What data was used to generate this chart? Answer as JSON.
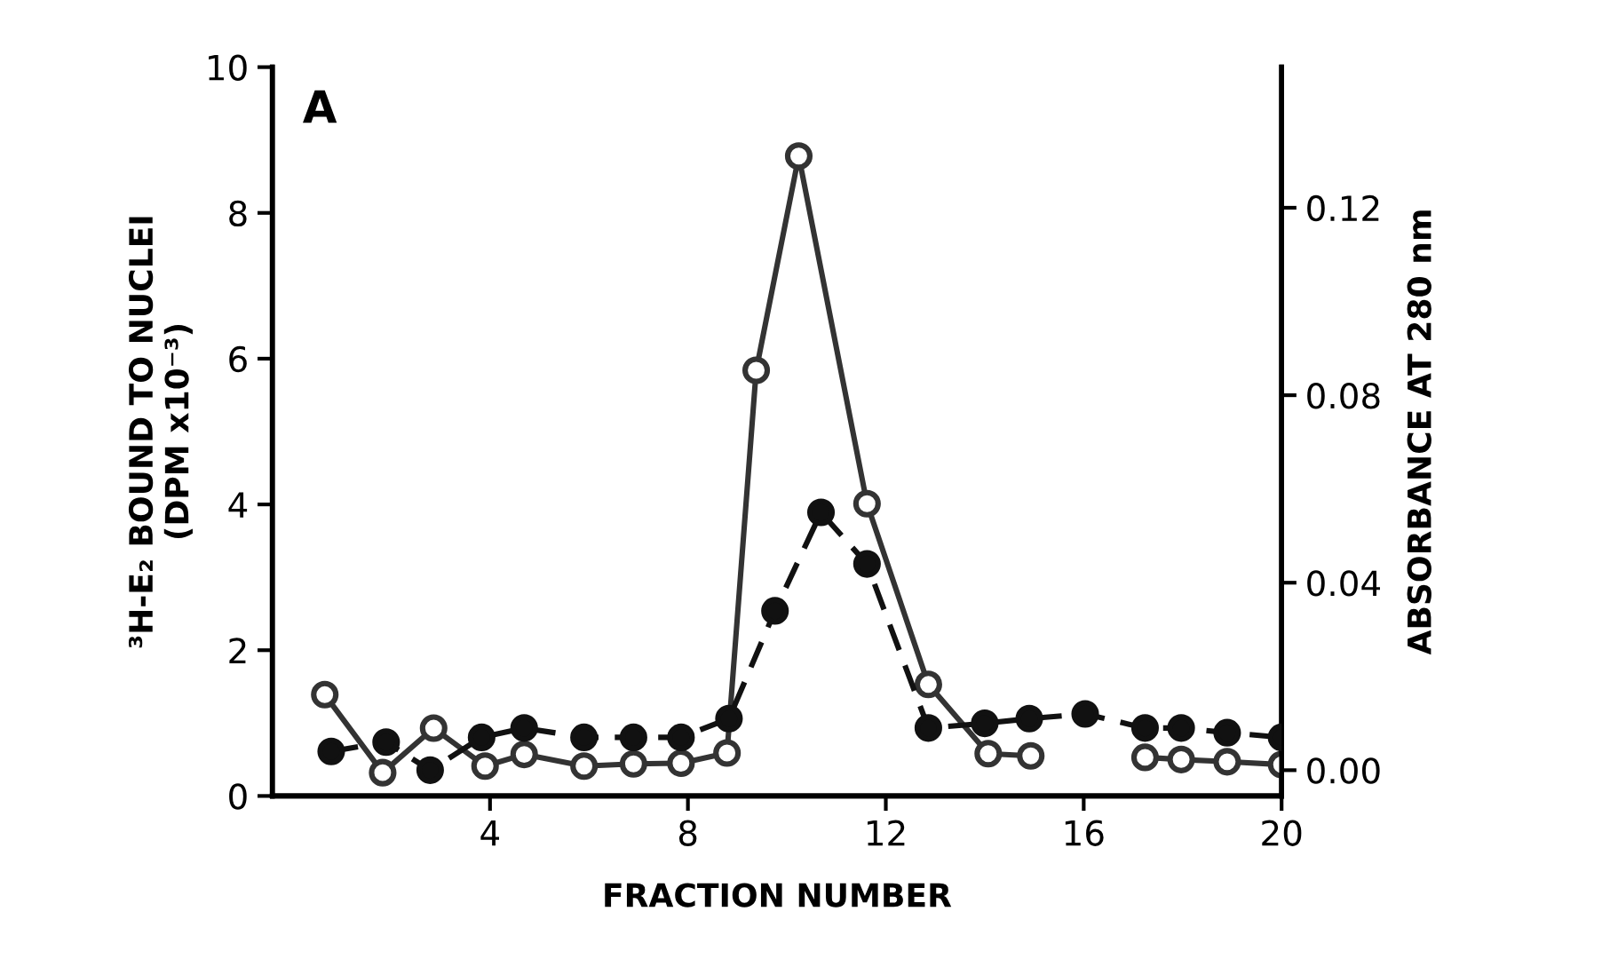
{
  "chart_data": {
    "type": "line",
    "xlabel": "FRACTION NUMBER",
    "ylabel": "³H-E₂ BOUND TO NUCLEI\n(DPM x10⁻³)",
    "y2label": "ABSORBANCE AT 280 nm",
    "annotations": [
      "A"
    ],
    "xlim": [
      -0.4,
      20
    ],
    "xticks": [
      4,
      8,
      12,
      16,
      20
    ],
    "ylim": [
      0,
      10
    ],
    "yticks": [
      0,
      2,
      4,
      6,
      8,
      10
    ],
    "y2lim": [
      -0.0055,
      0.15
    ],
    "y2ticks": [
      {
        "value": 0,
        "label": "0.00"
      },
      {
        "value": 0.04,
        "label": "0.04"
      },
      {
        "value": 0.08,
        "label": "0.08"
      },
      {
        "value": 0.12,
        "label": "0.12"
      }
    ],
    "grid": false,
    "marker": "circle",
    "series": [
      {
        "color": "#333333",
        "line_style": "solid",
        "axis": "y",
        "x": [
          0.66,
          1.83,
          2.86,
          3.9,
          4.69,
          5.9,
          6.9,
          7.86,
          8.79,
          9.38,
          10.24,
          11.62,
          12.86,
          14.07,
          14.93,
          16.03,
          17.24,
          17.97,
          18.9,
          20.0
        ],
        "values": [
          1.39,
          0.32,
          0.93,
          0.41,
          0.57,
          0.41,
          0.44,
          0.45,
          0.59,
          5.84,
          8.78,
          4.01,
          1.53,
          0.58,
          0.55,
          null,
          0.53,
          0.5,
          0.47,
          0.43
        ]
      },
      {
        "color": "#111111",
        "line_style": "dashed",
        "axis": "y2",
        "x": [
          0.79,
          1.9,
          2.79,
          3.83,
          4.69,
          5.9,
          6.9,
          7.86,
          8.83,
          9.76,
          10.69,
          11.62,
          12.86,
          14.0,
          14.9,
          16.03,
          17.24,
          17.97,
          18.9,
          20.0
        ],
        "values": [
          0.004,
          0.006,
          0.0,
          0.007,
          0.009,
          0.007,
          0.007,
          0.007,
          0.011,
          0.034,
          0.055,
          0.044,
          0.009,
          0.01,
          0.011,
          0.012,
          0.009,
          0.009,
          0.008,
          0.007
        ]
      }
    ]
  }
}
